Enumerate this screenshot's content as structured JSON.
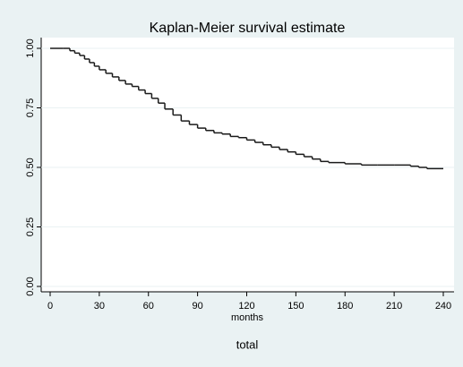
{
  "chart_data": {
    "type": "step",
    "title": "Kaplan-Meier survival estimate",
    "x_label": "months",
    "legend": "total",
    "x": [
      0,
      8,
      12,
      15,
      18,
      21,
      24,
      27,
      30,
      34,
      38,
      42,
      46,
      50,
      54,
      58,
      62,
      66,
      70,
      75,
      80,
      85,
      90,
      95,
      100,
      105,
      110,
      115,
      120,
      125,
      130,
      135,
      140,
      145,
      150,
      155,
      160,
      165,
      170,
      180,
      190,
      200,
      210,
      220,
      225,
      230,
      240
    ],
    "series": [
      {
        "name": "total",
        "color": "#1a1a1a",
        "values": [
          1,
          1,
          0.99,
          0.98,
          0.97,
          0.955,
          0.94,
          0.925,
          0.91,
          0.895,
          0.88,
          0.865,
          0.85,
          0.84,
          0.825,
          0.81,
          0.79,
          0.77,
          0.745,
          0.72,
          0.695,
          0.68,
          0.665,
          0.655,
          0.645,
          0.64,
          0.63,
          0.625,
          0.615,
          0.605,
          0.595,
          0.585,
          0.575,
          0.565,
          0.555,
          0.545,
          0.535,
          0.525,
          0.52,
          0.515,
          0.51,
          0.51,
          0.51,
          0.505,
          0.5,
          0.495,
          0.495
        ]
      }
    ],
    "xlim": [
      0,
      240
    ],
    "xticks": [
      0,
      30,
      60,
      90,
      120,
      150,
      180,
      210,
      240
    ],
    "ylim": [
      0,
      1
    ],
    "yticks": [
      {
        "value": 0,
        "label": "0.00"
      },
      {
        "value": 0.25,
        "label": "0.25"
      },
      {
        "value": 0.5,
        "label": "0.50"
      },
      {
        "value": 0.75,
        "label": "0.75"
      },
      {
        "value": 1,
        "label": "1.00"
      }
    ],
    "grid": true
  }
}
